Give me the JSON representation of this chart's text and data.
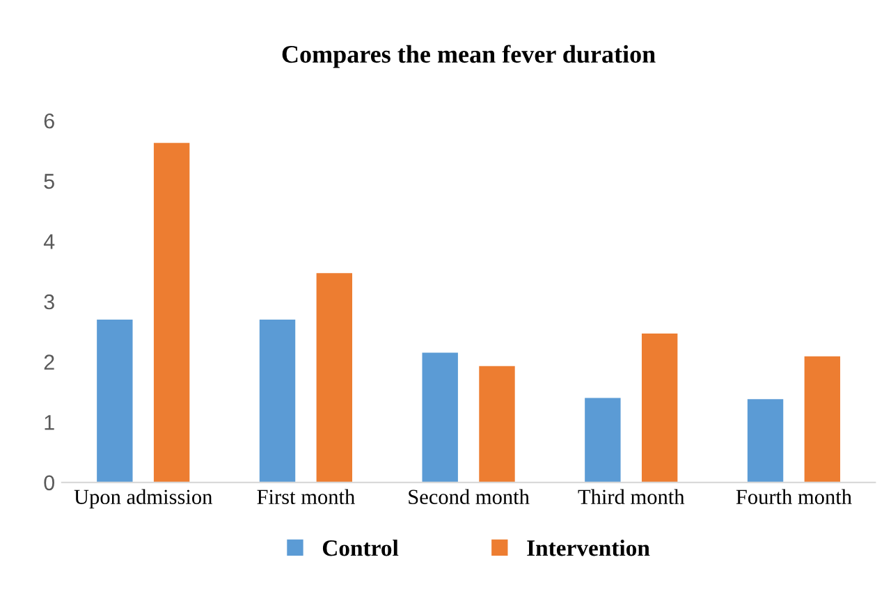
{
  "chart_data": {
    "type": "bar",
    "title": "Compares the mean fever duration",
    "categories": [
      "Upon admission",
      "First month",
      "Second month",
      "Third month",
      "Fourth month"
    ],
    "series": [
      {
        "name": "Control",
        "color": "#5b9bd5",
        "values": [
          2.7,
          2.7,
          2.15,
          1.4,
          1.38
        ]
      },
      {
        "name": "Intervention",
        "color": "#ed7d31",
        "values": [
          5.63,
          3.47,
          1.93,
          2.47,
          2.09
        ]
      }
    ],
    "ylim": [
      0,
      6
    ],
    "yticks": [
      0,
      1,
      2,
      3,
      4,
      5,
      6
    ],
    "grid": false,
    "legend": "bottom"
  }
}
